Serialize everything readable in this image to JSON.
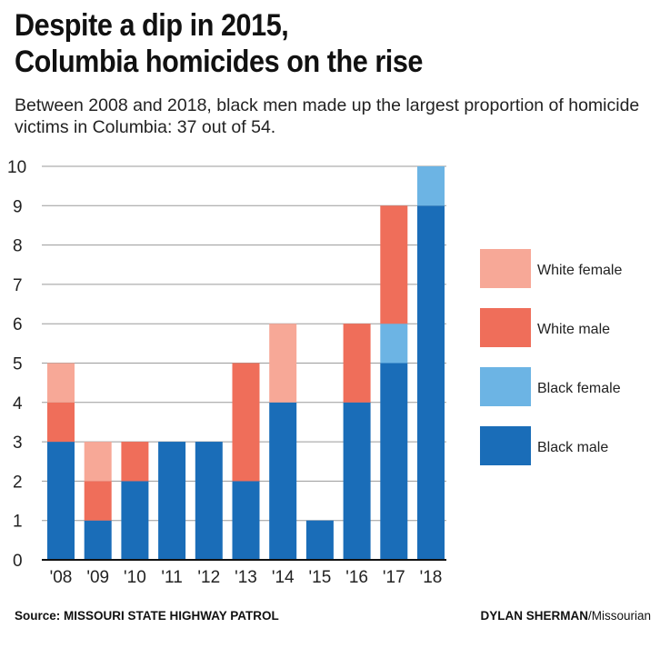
{
  "title_line1": "Despite a dip in 2015,",
  "title_line2": "Columbia homicides on the rise",
  "subtitle": "Between 2008 and 2018, black men made up the largest proportion of homicide victims in Columbia: 37 out of 54.",
  "source": "Source: MISSOURI STATE HIGHWAY PATROL",
  "credit_name": "DYLAN SHERMAN",
  "credit_org": "/Missourian",
  "chart_data": {
    "type": "bar",
    "stacked": true,
    "categories": [
      "'08",
      "'09",
      "'10",
      "'11",
      "'12",
      "'13",
      "'14",
      "'15",
      "'16",
      "'17",
      "'18"
    ],
    "series": [
      {
        "name": "Black male",
        "color": "#1a6db8",
        "values": [
          3,
          1,
          2,
          3,
          3,
          2,
          4,
          1,
          4,
          5,
          9
        ]
      },
      {
        "name": "Black female",
        "color": "#6cb4e4",
        "values": [
          0,
          0,
          0,
          0,
          0,
          0,
          0,
          0,
          0,
          1,
          1
        ]
      },
      {
        "name": "White male",
        "color": "#ef6e5a",
        "values": [
          1,
          1,
          1,
          0,
          0,
          3,
          0,
          0,
          2,
          3,
          0
        ]
      },
      {
        "name": "White female",
        "color": "#f7a897",
        "values": [
          1,
          1,
          0,
          0,
          0,
          0,
          2,
          0,
          0,
          0,
          0
        ]
      }
    ],
    "ylim": [
      0,
      10
    ],
    "yticks": [
      0,
      1,
      2,
      3,
      4,
      5,
      6,
      7,
      8,
      9,
      10
    ],
    "grid": true,
    "legend_order": [
      "White female",
      "White male",
      "Black female",
      "Black male"
    ],
    "legend_placement": "right"
  }
}
